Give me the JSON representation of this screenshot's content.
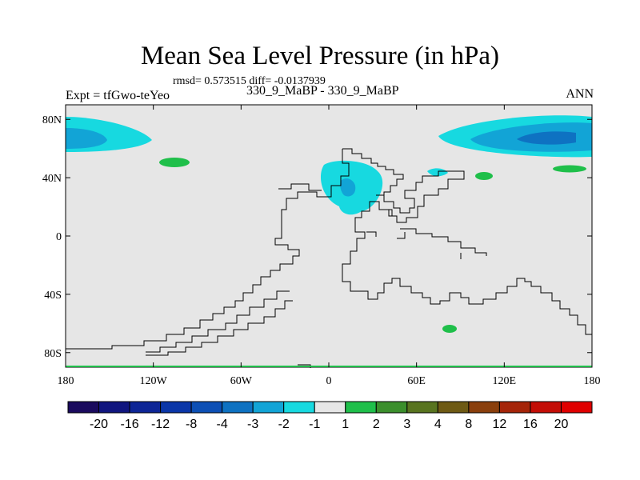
{
  "header": {
    "title": "Mean Sea Level Pressure (in hPa)",
    "subtitle": "rmsd= 0.573515 diff= -0.0137939",
    "left_label": "Expt = tfGwo-teYeo",
    "center_label": "330_9_MaBP - 330_9_MaBP",
    "right_label": "ANN"
  },
  "chart_data": {
    "type": "heatmap",
    "title": "Mean Sea Level Pressure (in hPa)",
    "subtitle": "rmsd= 0.573515 diff= -0.0137939",
    "xlabel": "",
    "ylabel": "",
    "x_ticks": [
      "180",
      "120W",
      "60W",
      "0",
      "60E",
      "120E",
      "180"
    ],
    "y_ticks": [
      "80N",
      "40N",
      "0",
      "40S",
      "80S"
    ],
    "xlim": [
      -180,
      180
    ],
    "ylim": [
      -90,
      90
    ],
    "background_value_range": [
      -1,
      1
    ],
    "colorbar": {
      "labels": [
        "-20",
        "-16",
        "-12",
        "-8",
        "-4",
        "-3",
        "-2",
        "-1",
        "1",
        "2",
        "3",
        "4",
        "8",
        "12",
        "16",
        "20"
      ],
      "colors": [
        "#1a0a5e",
        "#10157f",
        "#0d2596",
        "#0a36a8",
        "#0c4fb5",
        "#0e72c2",
        "#12a4d6",
        "#17d9e0",
        "#e6e6e6",
        "#1fbf4a",
        "#3b8f2c",
        "#58741f",
        "#6e5a14",
        "#8a3f0c",
        "#a52408",
        "#c40d06",
        "#e00000"
      ]
    }
  }
}
